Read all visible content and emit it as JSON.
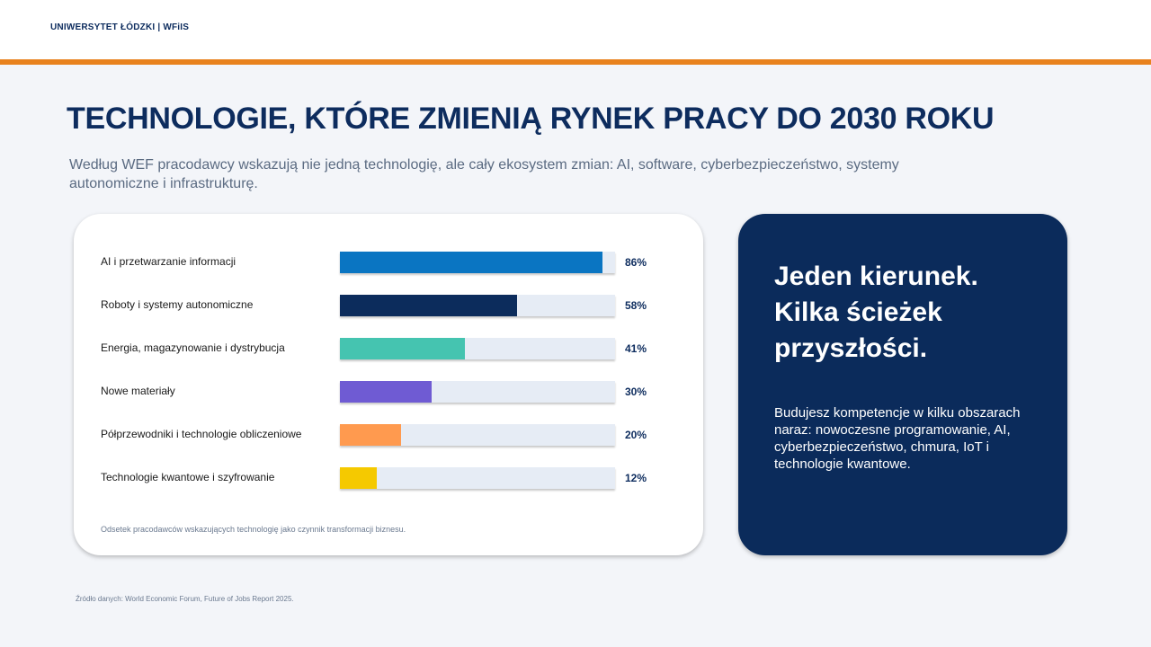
{
  "header": {
    "brand": "UNIWERSYTET ŁÓDZKI  |  WFiIS"
  },
  "slide": {
    "title": "TECHNOLOGIE, KTÓRE ZMIENIĄ RYNEK PRACY DO 2030 ROKU",
    "subtitle": "Według WEF pracodawcy wskazują nie jedną technologię, ale cały ekosystem zmian: AI, software, cyberbezpieczeństwo, systemy autonomiczne i infrastrukturę."
  },
  "chart_data": {
    "type": "bar",
    "orientation": "horizontal",
    "categories": [
      "AI i przetwarzanie informacji",
      "Roboty i systemy autonomiczne",
      "Energia, magazynowanie i dystrybucja",
      "Nowe materiały",
      "Półprzewodniki i technologie obliczeniowe",
      "Technologie kwantowe i szyfrowanie"
    ],
    "values": [
      86,
      58,
      41,
      30,
      20,
      12
    ],
    "value_labels": [
      "86%",
      "58%",
      "41%",
      "30%",
      "20%",
      "12%"
    ],
    "colors": [
      "#0a75c2",
      "#0c2c5c",
      "#45c4b0",
      "#6f5bd3",
      "#ff9a4f",
      "#f5c900"
    ],
    "xlim": [
      0,
      90
    ],
    "grid": false,
    "track_color": "#e6ecf5",
    "footnote": "Odsetek pracodawców wskazujących technologię jako czynnik transformacji biznesu."
  },
  "panel": {
    "heading": "Jeden kierunek. Kilka ścieżek przyszłości.",
    "body": "Budujesz kompetencje w kilku obszarach naraz: nowoczesne programowanie, AI, cyberbezpieczeństwo, chmura, IoT i technologie kwantowe."
  },
  "footer": {
    "source": "Źródło danych: World Economic Forum, Future of Jobs Report 2025."
  },
  "colors": {
    "accent": "#e8821e",
    "navy": "#0b2b5b",
    "background": "#f3f5f9"
  }
}
